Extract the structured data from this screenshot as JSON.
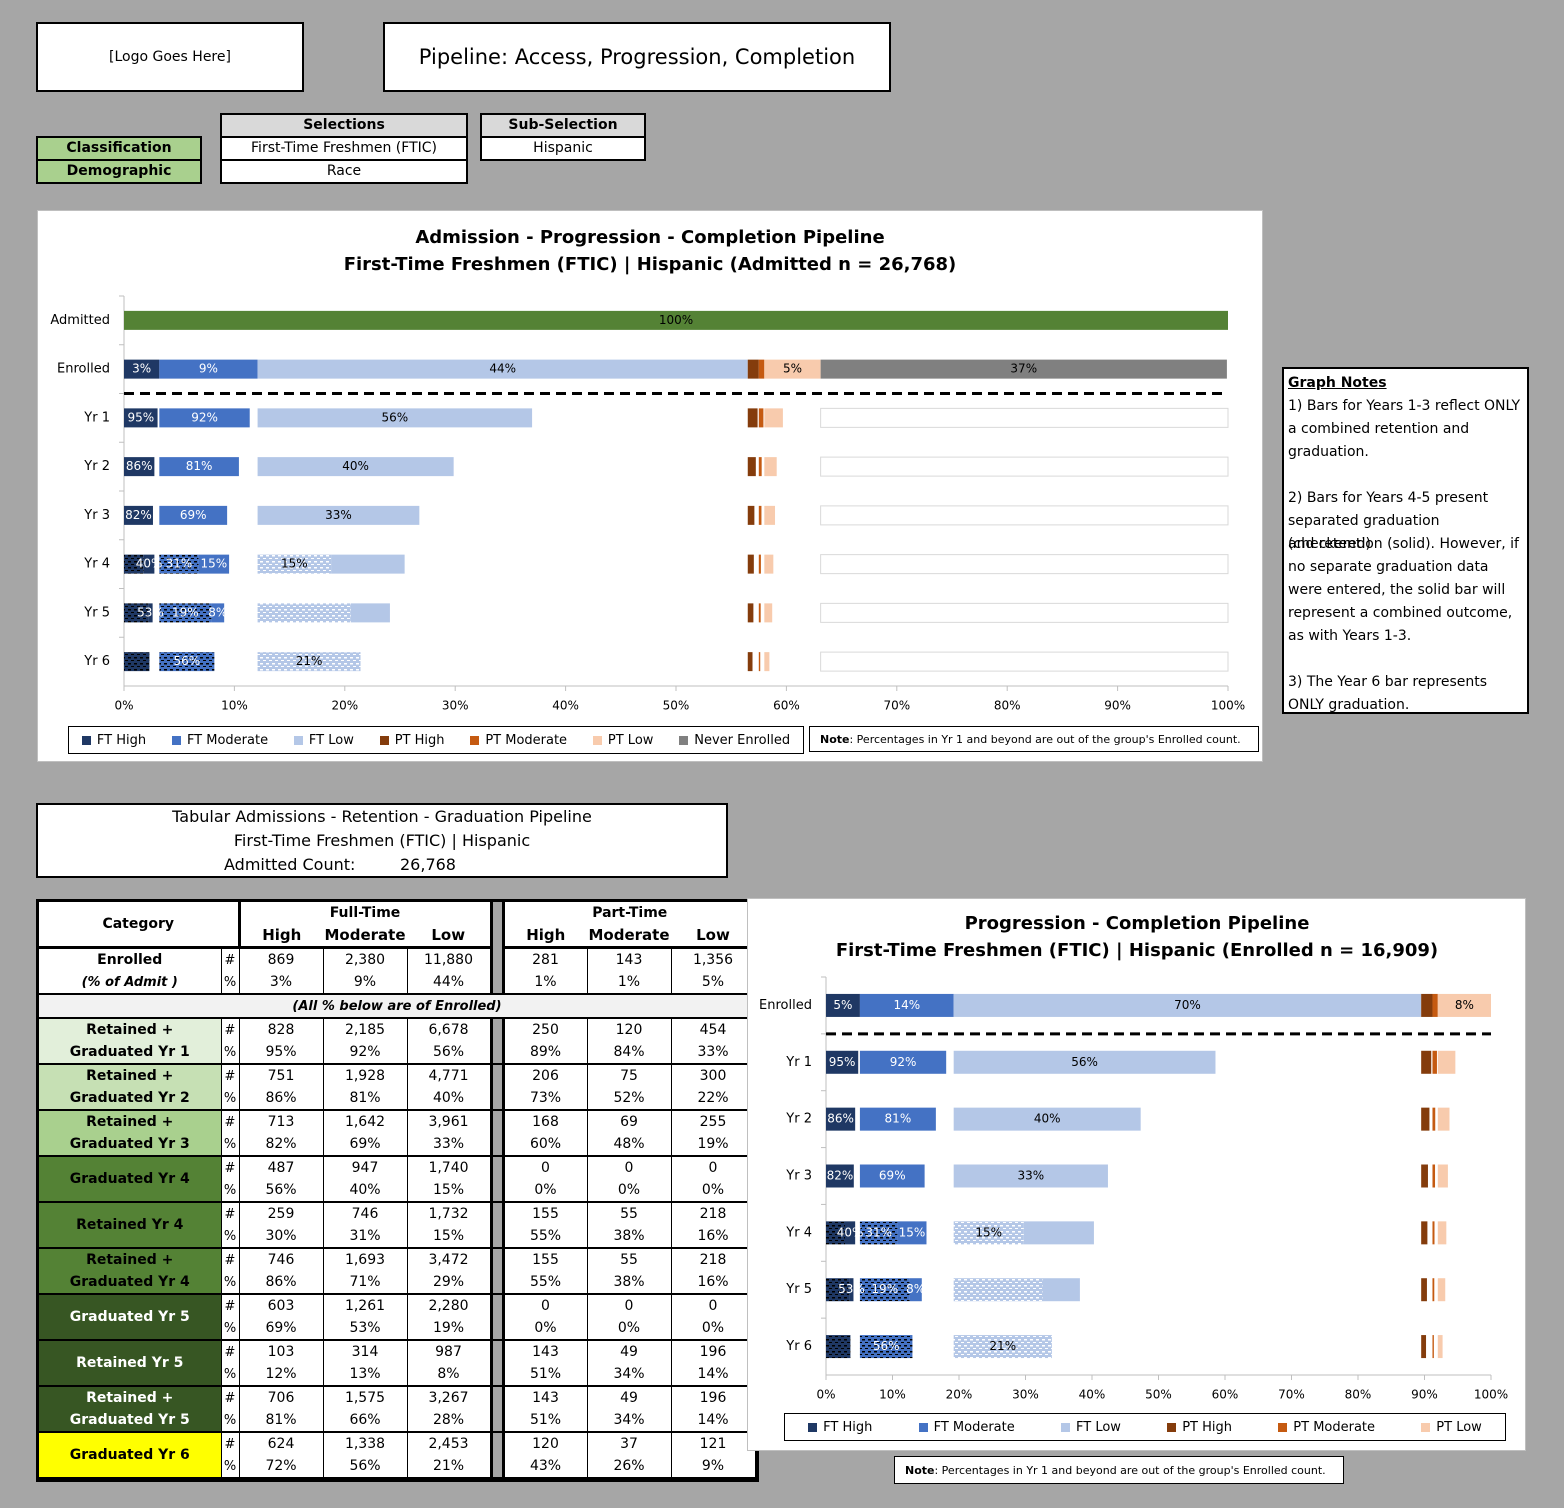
{
  "header": {
    "logo_text": "[Logo Goes Here]",
    "title": "Pipeline: Access, Progression, Completion"
  },
  "selections": {
    "labels": [
      "Classification",
      "Demographic"
    ],
    "selections_header": "Selections",
    "selections_values": [
      "First-Time Freshmen (FTIC)",
      "Race"
    ],
    "subselection_header": "Sub-Selection",
    "subselection_value": "Hispanic"
  },
  "colors": {
    "ft_high": "#1f3864",
    "ft_moderate": "#4472c4",
    "ft_low": "#b4c7e7",
    "pt_high": "#843c0c",
    "pt_moderate": "#c55a11",
    "pt_low": "#f8cbad",
    "never_enrolled": "#808080",
    "admitted": "#548235"
  },
  "chart_data": [
    {
      "type": "bar",
      "orientation": "horizontal-stacked",
      "title": "Admission - Progression - Completion Pipeline",
      "subtitle": "First-Time Freshmen (FTIC) | Hispanic (Admitted n = 26,768)",
      "xlim": [
        0,
        100
      ],
      "xticks": [
        "0%",
        "10%",
        "20%",
        "30%",
        "40%",
        "50%",
        "60%",
        "70%",
        "80%",
        "90%",
        "100%"
      ],
      "categories": [
        "Admitted",
        "Enrolled",
        "Yr 1",
        "Yr 2",
        "Yr 3",
        "Yr 4",
        "Yr 5",
        "Yr 6"
      ],
      "legend": [
        "FT High",
        "FT Moderate",
        "FT Low",
        "PT High",
        "PT Moderate",
        "PT Low",
        "Never Enrolled"
      ],
      "note_bold": "Note",
      "note": ": Percentages in Yr 1 and beyond are out of the group's Enrolled count.",
      "admitted": {
        "value": 100,
        "label": "100%"
      },
      "enrolled": [
        {
          "series": "FT High",
          "value": 3.2,
          "label": "3%"
        },
        {
          "series": "FT Moderate",
          "value": 8.9,
          "label": "9%"
        },
        {
          "series": "FT Low",
          "value": 44.4,
          "label": "44%"
        },
        {
          "series": "PT High",
          "value": 1.0,
          "label": ""
        },
        {
          "series": "PT Moderate",
          "value": 0.5,
          "label": ""
        },
        {
          "series": "PT Low",
          "value": 5.1,
          "label": "5%"
        },
        {
          "series": "Never Enrolled",
          "value": 36.8,
          "label": "37%"
        }
      ],
      "years": [
        {
          "label": "Yr 1",
          "ft_high": 95,
          "ft_moderate": 92,
          "ft_low": 56,
          "pt_high": 89,
          "pt_moderate": 84,
          "pt_low": 33,
          "ft_high_grad": 0,
          "ft_moderate_grad": 0,
          "ft_low_grad": 0,
          "labels": [
            "95%",
            "92%",
            "56%"
          ]
        },
        {
          "label": "Yr 2",
          "ft_high": 86,
          "ft_moderate": 81,
          "ft_low": 40,
          "pt_high": 73,
          "pt_moderate": 52,
          "pt_low": 22,
          "ft_high_grad": 0,
          "ft_moderate_grad": 0,
          "ft_low_grad": 0,
          "labels": [
            "86%",
            "81%",
            "40%"
          ]
        },
        {
          "label": "Yr 3",
          "ft_high": 82,
          "ft_moderate": 69,
          "ft_low": 33,
          "pt_high": 60,
          "pt_moderate": 48,
          "pt_low": 19,
          "ft_high_grad": 0,
          "ft_moderate_grad": 0,
          "ft_low_grad": 0,
          "labels": [
            "82%",
            "69%",
            "33%"
          ]
        },
        {
          "label": "Yr 4",
          "ft_high": 30,
          "ft_moderate": 31,
          "ft_low": 15,
          "pt_high": 55,
          "pt_moderate": 38,
          "pt_low": 16,
          "ft_high_grad": 56,
          "ft_moderate_grad": 40,
          "ft_low_grad": 15,
          "labels": [
            "",
            "40%",
            "31%",
            "15%",
            "15%"
          ]
        },
        {
          "label": "Yr 5",
          "ft_high": 12,
          "ft_moderate": 13,
          "ft_low": 8,
          "pt_high": 51,
          "pt_moderate": 34,
          "pt_low": 14,
          "ft_high_grad": 69,
          "ft_moderate_grad": 53,
          "ft_low_grad": 19,
          "labels": [
            "",
            "53%",
            "19%",
            "8%"
          ]
        },
        {
          "label": "Yr 6",
          "ft_high": 0,
          "ft_moderate": 0,
          "ft_low": 0,
          "pt_high": 43,
          "pt_moderate": 26,
          "pt_low": 9,
          "ft_high_grad": 72,
          "ft_moderate_grad": 56,
          "ft_low_grad": 21,
          "labels": [
            "",
            "56%",
            "21%"
          ]
        }
      ]
    },
    {
      "type": "bar",
      "orientation": "horizontal-stacked",
      "title": "Progression - Completion Pipeline",
      "subtitle": "First-Time Freshmen (FTIC) | Hispanic (Enrolled n = 16,909)",
      "xlim": [
        0,
        100
      ],
      "xticks": [
        "0%",
        "10%",
        "20%",
        "30%",
        "40%",
        "50%",
        "60%",
        "70%",
        "80%",
        "90%",
        "100%"
      ],
      "categories": [
        "Enrolled",
        "Yr 1",
        "Yr 2",
        "Yr 3",
        "Yr 4",
        "Yr 5",
        "Yr 6"
      ],
      "legend": [
        "FT High",
        "FT Moderate",
        "FT Low",
        "PT High",
        "PT Moderate",
        "PT Low"
      ],
      "note_bold": "Note",
      "note": ": Percentages in Yr 1 and beyond are out of the group's Enrolled count.",
      "enrolled": [
        {
          "series": "FT High",
          "value": 5.1,
          "label": "5%"
        },
        {
          "series": "FT Moderate",
          "value": 14.1,
          "label": "14%"
        },
        {
          "series": "FT Low",
          "value": 70.3,
          "label": "70%"
        },
        {
          "series": "PT High",
          "value": 1.7,
          "label": ""
        },
        {
          "series": "PT Moderate",
          "value": 0.8,
          "label": ""
        },
        {
          "series": "PT Low",
          "value": 8.0,
          "label": "8%"
        }
      ]
    }
  ],
  "graph_notes": {
    "title": "Graph Notes",
    "lines": [
      "1) Bars for Years 1-3 reflect ONLY",
      "a combined retention and",
      "graduation.",
      "",
      "2) Bars for Years 4-5 present",
      "separated graduation (checkered)",
      "and retention (solid). However, if",
      "no separate graduation data",
      "were entered, the solid bar will",
      "represent a combined outcome,",
      "as with Years 1-3.",
      "",
      "3) The Year 6 bar represents",
      "ONLY graduation."
    ]
  },
  "table_header": {
    "line1": "Tabular Admissions - Retention - Graduation Pipeline",
    "line2": "First-Time Freshmen (FTIC) | Hispanic",
    "admitted_label": "Admitted Count:",
    "admitted_value": "26,768"
  },
  "table": {
    "category_header": "Category",
    "fulltime_header": "Full-Time",
    "parttime_header": "Part-Time",
    "subheaders": [
      "High",
      "Moderate",
      "Low"
    ],
    "enrolled_label": "Enrolled",
    "enrolled_sub": "(% of Admit )",
    "enrolled_counts": [
      "869",
      "2,380",
      "11,880",
      "281",
      "143",
      "1,356"
    ],
    "enrolled_pcts": [
      "3%",
      "9%",
      "44%",
      "1%",
      "1%",
      "5%"
    ],
    "divider": "(All % below are of Enrolled)",
    "rows": [
      {
        "label1": "Retained +",
        "label2": "Graduated Yr 1",
        "bg": "#e2efda",
        "fg": "#000000",
        "counts": [
          "828",
          "2,185",
          "6,678",
          "250",
          "120",
          "454"
        ],
        "pcts": [
          "95%",
          "92%",
          "56%",
          "89%",
          "84%",
          "33%"
        ]
      },
      {
        "label1": "Retained +",
        "label2": "Graduated Yr 2",
        "bg": "#c6e0b4",
        "fg": "#000000",
        "counts": [
          "751",
          "1,928",
          "4,771",
          "206",
          "75",
          "300"
        ],
        "pcts": [
          "86%",
          "81%",
          "40%",
          "73%",
          "52%",
          "22%"
        ]
      },
      {
        "label1": "Retained +",
        "label2": "Graduated Yr 3",
        "bg": "#a9d08e",
        "fg": "#000000",
        "counts": [
          "713",
          "1,642",
          "3,961",
          "168",
          "69",
          "255"
        ],
        "pcts": [
          "82%",
          "69%",
          "33%",
          "60%",
          "48%",
          "19%"
        ]
      },
      {
        "label1": "Graduated Yr 4",
        "label2": "",
        "bg": "#548235",
        "fg": "#000000",
        "counts": [
          "487",
          "947",
          "1,740",
          "0",
          "0",
          "0"
        ],
        "pcts": [
          "56%",
          "40%",
          "15%",
          "0%",
          "0%",
          "0%"
        ]
      },
      {
        "label1": "Retained Yr 4",
        "label2": "",
        "bg": "#548235",
        "fg": "#000000",
        "counts": [
          "259",
          "746",
          "1,732",
          "155",
          "55",
          "218"
        ],
        "pcts": [
          "30%",
          "31%",
          "15%",
          "55%",
          "38%",
          "16%"
        ]
      },
      {
        "label1": "Retained +",
        "label2": "Graduated Yr 4",
        "bg": "#548235",
        "fg": "#000000",
        "counts": [
          "746",
          "1,693",
          "3,472",
          "155",
          "55",
          "218"
        ],
        "pcts": [
          "86%",
          "71%",
          "29%",
          "55%",
          "38%",
          "16%"
        ]
      },
      {
        "label1": "Graduated Yr 5",
        "label2": "",
        "bg": "#375623",
        "fg": "#ffffff",
        "counts": [
          "603",
          "1,261",
          "2,280",
          "0",
          "0",
          "0"
        ],
        "pcts": [
          "69%",
          "53%",
          "19%",
          "0%",
          "0%",
          "0%"
        ]
      },
      {
        "label1": "Retained Yr 5",
        "label2": "",
        "bg": "#375623",
        "fg": "#ffffff",
        "counts": [
          "103",
          "314",
          "987",
          "143",
          "49",
          "196"
        ],
        "pcts": [
          "12%",
          "13%",
          "8%",
          "51%",
          "34%",
          "14%"
        ]
      },
      {
        "label1": "Retained +",
        "label2": "Graduated Yr 5",
        "bg": "#375623",
        "fg": "#ffffff",
        "counts": [
          "706",
          "1,575",
          "3,267",
          "143",
          "49",
          "196"
        ],
        "pcts": [
          "81%",
          "66%",
          "28%",
          "51%",
          "34%",
          "14%"
        ]
      },
      {
        "label1": "Graduated Yr 6",
        "label2": "",
        "bg": "#ffff00",
        "fg": "#000000",
        "counts": [
          "624",
          "1,338",
          "2,453",
          "120",
          "37",
          "121"
        ],
        "pcts": [
          "72%",
          "56%",
          "21%",
          "43%",
          "26%",
          "9%"
        ]
      }
    ]
  }
}
